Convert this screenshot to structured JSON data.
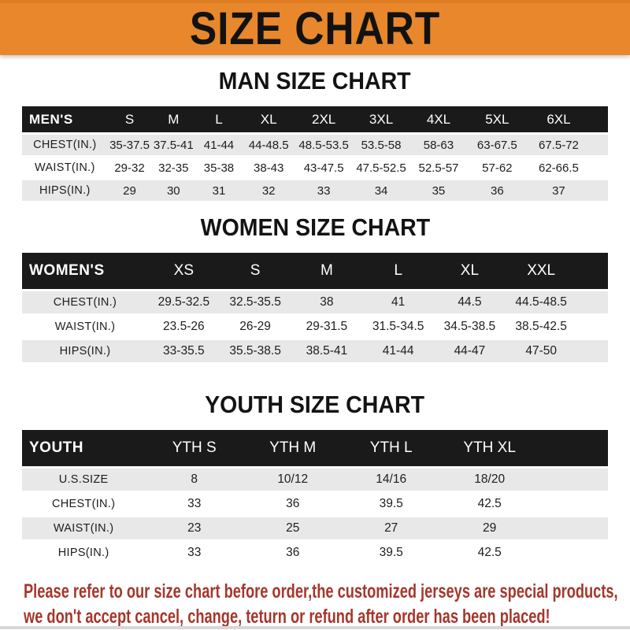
{
  "banner": {
    "title": "SIZE CHART"
  },
  "sections": [
    {
      "heading": "MAN SIZE CHART",
      "table_label": "MEN'S",
      "columns": [
        "S",
        "M",
        "L",
        "XL",
        "2XL",
        "3XL",
        "4XL",
        "5XL",
        "6XL"
      ],
      "rows": [
        {
          "label": "CHEST(IN.)",
          "values": [
            "35-37.5",
            "37.5-41",
            "41-44",
            "44-48.5",
            "48.5-53.5",
            "53.5-58",
            "58-63",
            "63-67.5",
            "67.5-72"
          ]
        },
        {
          "label": "WAIST(IN.)",
          "values": [
            "29-32",
            "32-35",
            "35-38",
            "38-43",
            "43-47.5",
            "47.5-52.5",
            "52.5-57",
            "57-62",
            "62-66.5"
          ]
        },
        {
          "label": "HIPS(IN.)",
          "values": [
            "29",
            "30",
            "31",
            "32",
            "33",
            "34",
            "35",
            "36",
            "37"
          ]
        }
      ]
    },
    {
      "heading": "WOMEN SIZE CHART",
      "table_label": "WOMEN'S",
      "columns": [
        "XS",
        "S",
        "M",
        "L",
        "XL",
        "XXL"
      ],
      "rows": [
        {
          "label": "CHEST(IN.)",
          "values": [
            "29.5-32.5",
            "32.5-35.5",
            "38",
            "41",
            "44.5",
            "44.5-48.5"
          ]
        },
        {
          "label": "WAIST(IN.)",
          "values": [
            "23.5-26",
            "26-29",
            "29-31.5",
            "31.5-34.5",
            "34.5-38.5",
            "38.5-42.5"
          ]
        },
        {
          "label": "HIPS(IN.)",
          "values": [
            "33-35.5",
            "35.5-38.5",
            "38.5-41",
            "41-44",
            "44-47",
            "47-50"
          ]
        }
      ]
    },
    {
      "heading": "YOUTH SIZE CHART",
      "table_label": "YOUTH",
      "columns": [
        "YTH S",
        "YTH M",
        "YTH L",
        "YTH XL"
      ],
      "rows": [
        {
          "label": "U.S.SIZE",
          "values": [
            "8",
            "10/12",
            "14/16",
            "18/20"
          ]
        },
        {
          "label": "CHEST(IN.)",
          "values": [
            "33",
            "36",
            "39.5",
            "42.5"
          ]
        },
        {
          "label": "WAIST(IN.)",
          "values": [
            "23",
            "25",
            "27",
            "29"
          ]
        },
        {
          "label": "HIPS(IN.)",
          "values": [
            "33",
            "36",
            "39.5",
            "42.5"
          ]
        }
      ]
    }
  ],
  "footer": {
    "line1": "Please refer to our size chart before order,the customized jerseys are special products,",
    "line2": "we don't accept cancel, change, teturn or refund after order has been placed!"
  },
  "colors": {
    "banner_bg": "#E8872B",
    "header_bg": "#1A1A1A",
    "row_gray": "#E8E8E8",
    "footer_red": "#A5362B"
  }
}
